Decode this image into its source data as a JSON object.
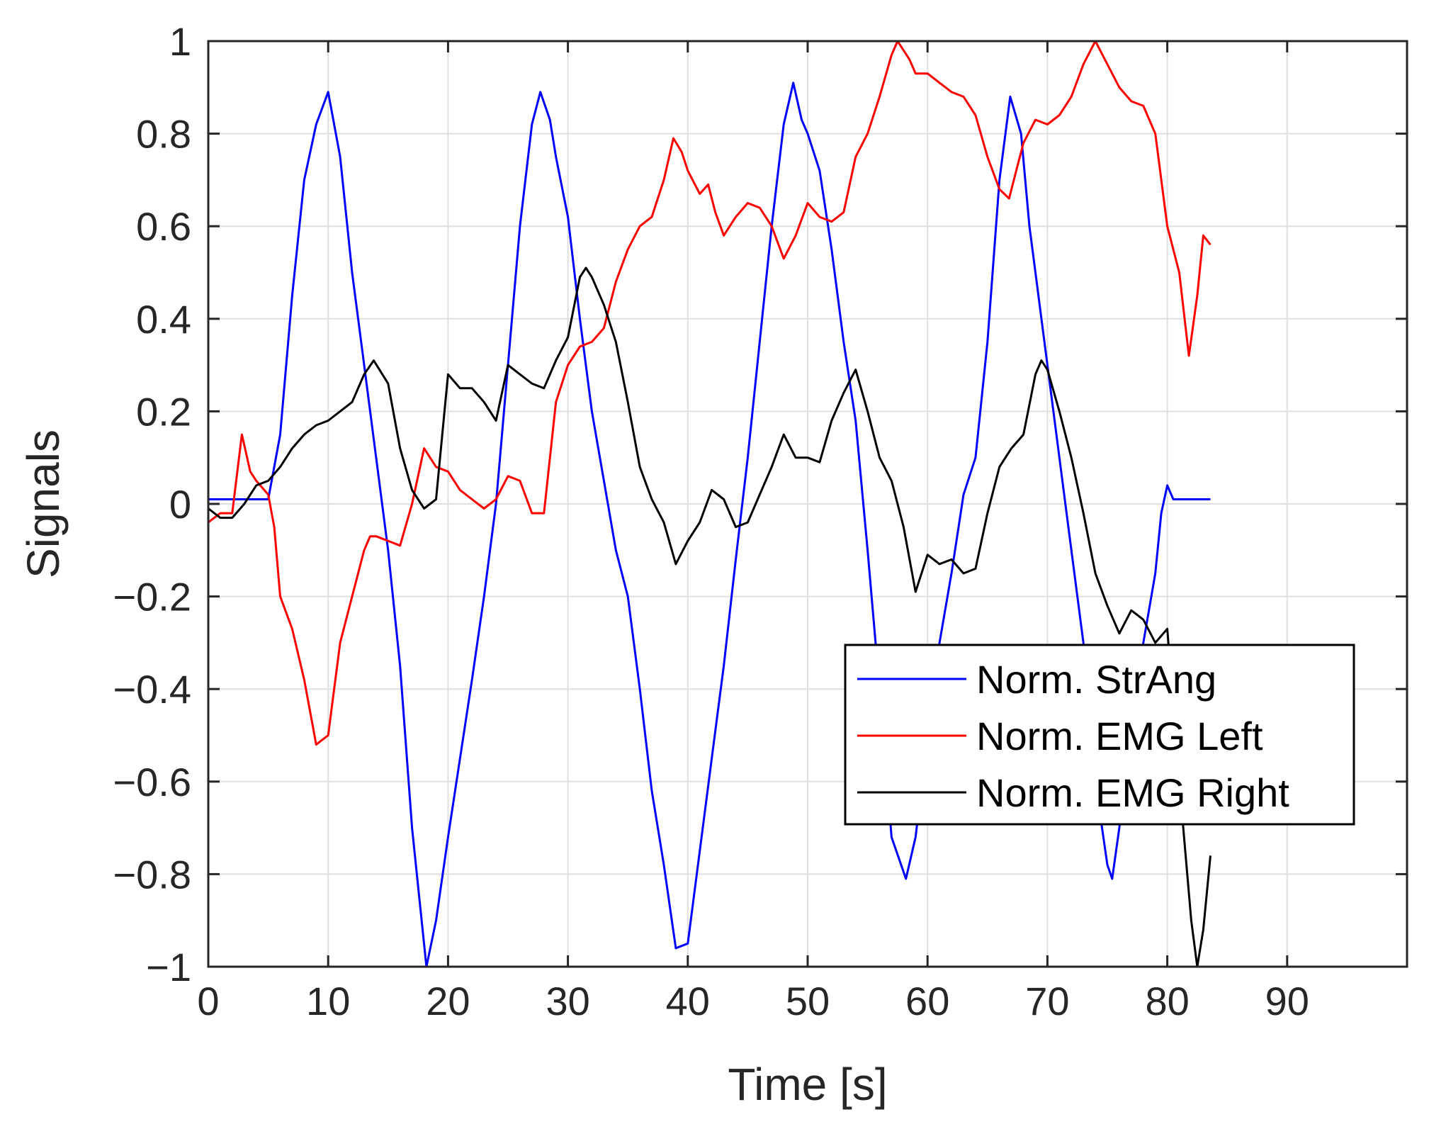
{
  "chart_data": {
    "type": "line",
    "title": "",
    "xlabel": "Time [s]",
    "ylabel": "Signals",
    "xlim": [
      0,
      100
    ],
    "ylim": [
      -1,
      1
    ],
    "xticks": [
      0,
      10,
      20,
      30,
      40,
      50,
      60,
      70,
      80,
      90
    ],
    "yticks": [
      -1,
      -0.8,
      -0.6,
      -0.4,
      -0.2,
      0,
      0.2,
      0.4,
      0.6,
      0.8,
      1
    ],
    "xtick_labels": [
      "0",
      "10",
      "20",
      "30",
      "40",
      "50",
      "60",
      "70",
      "80",
      "90"
    ],
    "ytick_labels": [
      "−1",
      "−0.8",
      "−0.6",
      "−0.4",
      "−0.2",
      "0",
      "0.2",
      "0.4",
      "0.6",
      "0.8",
      "1"
    ],
    "grid": true,
    "legend_position": "lower-right",
    "series": [
      {
        "name": "Norm. StrAng",
        "color": "#0000ff",
        "points": [
          [
            0,
            0.01
          ],
          [
            2,
            0.01
          ],
          [
            5,
            0.01
          ],
          [
            6,
            0.15
          ],
          [
            7,
            0.45
          ],
          [
            8,
            0.7
          ],
          [
            9,
            0.82
          ],
          [
            10,
            0.89
          ],
          [
            11,
            0.75
          ],
          [
            12,
            0.5
          ],
          [
            13,
            0.3
          ],
          [
            14,
            0.1
          ],
          [
            15,
            -0.1
          ],
          [
            16,
            -0.35
          ],
          [
            17,
            -0.7
          ],
          [
            18.2,
            -1.0
          ],
          [
            19,
            -0.9
          ],
          [
            20,
            -0.72
          ],
          [
            21,
            -0.55
          ],
          [
            22,
            -0.38
          ],
          [
            23,
            -0.2
          ],
          [
            24,
            0.0
          ],
          [
            25,
            0.3
          ],
          [
            26,
            0.6
          ],
          [
            27,
            0.82
          ],
          [
            27.7,
            0.89
          ],
          [
            28.5,
            0.83
          ],
          [
            29,
            0.75
          ],
          [
            30,
            0.62
          ],
          [
            31,
            0.4
          ],
          [
            32,
            0.2
          ],
          [
            33,
            0.05
          ],
          [
            34,
            -0.1
          ],
          [
            35,
            -0.2
          ],
          [
            36,
            -0.4
          ],
          [
            37,
            -0.62
          ],
          [
            38,
            -0.78
          ],
          [
            39,
            -0.96
          ],
          [
            40,
            -0.95
          ],
          [
            41,
            -0.75
          ],
          [
            42,
            -0.55
          ],
          [
            43,
            -0.35
          ],
          [
            44,
            -0.12
          ],
          [
            45,
            0.1
          ],
          [
            46,
            0.35
          ],
          [
            47,
            0.6
          ],
          [
            48,
            0.82
          ],
          [
            48.8,
            0.91
          ],
          [
            49.5,
            0.83
          ],
          [
            50,
            0.8
          ],
          [
            51,
            0.72
          ],
          [
            52,
            0.55
          ],
          [
            53,
            0.35
          ],
          [
            54,
            0.18
          ],
          [
            55,
            -0.1
          ],
          [
            56,
            -0.4
          ],
          [
            57,
            -0.72
          ],
          [
            58.2,
            -0.81
          ],
          [
            59,
            -0.72
          ],
          [
            60,
            -0.5
          ],
          [
            61,
            -0.3
          ],
          [
            62,
            -0.15
          ],
          [
            63,
            0.02
          ],
          [
            64,
            0.1
          ],
          [
            65,
            0.35
          ],
          [
            66,
            0.7
          ],
          [
            66.9,
            0.88
          ],
          [
            67.8,
            0.8
          ],
          [
            68.5,
            0.6
          ],
          [
            69,
            0.5
          ],
          [
            70,
            0.3
          ],
          [
            71,
            0.1
          ],
          [
            72,
            -0.1
          ],
          [
            73,
            -0.3
          ],
          [
            74,
            -0.6
          ],
          [
            75,
            -0.78
          ],
          [
            75.4,
            -0.81
          ],
          [
            76,
            -0.7
          ],
          [
            77,
            -0.45
          ],
          [
            78,
            -0.3
          ],
          [
            79,
            -0.15
          ],
          [
            79.5,
            -0.02
          ],
          [
            80,
            0.04
          ],
          [
            80.5,
            0.01
          ],
          [
            82,
            0.01
          ],
          [
            83.6,
            0.01
          ]
        ]
      },
      {
        "name": "Norm. EMG Left",
        "color": "#ff0000",
        "points": [
          [
            0,
            -0.04
          ],
          [
            1,
            -0.02
          ],
          [
            2,
            -0.02
          ],
          [
            2.8,
            0.15
          ],
          [
            3.5,
            0.07
          ],
          [
            4,
            0.05
          ],
          [
            5,
            0.02
          ],
          [
            5.5,
            -0.05
          ],
          [
            6,
            -0.2
          ],
          [
            7,
            -0.27
          ],
          [
            8,
            -0.38
          ],
          [
            9,
            -0.52
          ],
          [
            10,
            -0.5
          ],
          [
            11,
            -0.3
          ],
          [
            12,
            -0.2
          ],
          [
            13,
            -0.1
          ],
          [
            13.5,
            -0.07
          ],
          [
            14,
            -0.07
          ],
          [
            15,
            -0.08
          ],
          [
            16,
            -0.09
          ],
          [
            17,
            0.0
          ],
          [
            18,
            0.12
          ],
          [
            19,
            0.08
          ],
          [
            20,
            0.07
          ],
          [
            21,
            0.03
          ],
          [
            22,
            0.01
          ],
          [
            23,
            -0.01
          ],
          [
            24,
            0.01
          ],
          [
            25,
            0.06
          ],
          [
            26,
            0.05
          ],
          [
            27,
            -0.02
          ],
          [
            28,
            -0.02
          ],
          [
            29,
            0.22
          ],
          [
            30,
            0.3
          ],
          [
            31,
            0.34
          ],
          [
            32,
            0.35
          ],
          [
            33,
            0.38
          ],
          [
            34,
            0.48
          ],
          [
            35,
            0.55
          ],
          [
            36,
            0.6
          ],
          [
            37,
            0.62
          ],
          [
            38,
            0.7
          ],
          [
            38.8,
            0.79
          ],
          [
            39.5,
            0.76
          ],
          [
            40,
            0.72
          ],
          [
            41,
            0.67
          ],
          [
            41.7,
            0.69
          ],
          [
            42.3,
            0.63
          ],
          [
            43,
            0.58
          ],
          [
            44,
            0.62
          ],
          [
            45,
            0.65
          ],
          [
            46,
            0.64
          ],
          [
            47,
            0.6
          ],
          [
            48,
            0.53
          ],
          [
            49,
            0.58
          ],
          [
            50,
            0.65
          ],
          [
            51,
            0.62
          ],
          [
            52,
            0.61
          ],
          [
            53,
            0.63
          ],
          [
            54,
            0.75
          ],
          [
            55,
            0.8
          ],
          [
            56,
            0.88
          ],
          [
            57,
            0.97
          ],
          [
            57.5,
            1.0
          ],
          [
            58.5,
            0.96
          ],
          [
            59,
            0.93
          ],
          [
            60,
            0.93
          ],
          [
            61,
            0.91
          ],
          [
            62,
            0.89
          ],
          [
            63,
            0.88
          ],
          [
            64,
            0.84
          ],
          [
            65,
            0.75
          ],
          [
            66,
            0.68
          ],
          [
            66.8,
            0.66
          ],
          [
            67.5,
            0.73
          ],
          [
            68,
            0.78
          ],
          [
            69,
            0.83
          ],
          [
            70,
            0.82
          ],
          [
            71,
            0.84
          ],
          [
            72,
            0.88
          ],
          [
            73,
            0.95
          ],
          [
            74,
            1.0
          ],
          [
            75,
            0.95
          ],
          [
            76,
            0.9
          ],
          [
            77,
            0.87
          ],
          [
            78,
            0.86
          ],
          [
            79,
            0.8
          ],
          [
            80,
            0.6
          ],
          [
            81,
            0.5
          ],
          [
            81.8,
            0.32
          ],
          [
            82.5,
            0.45
          ],
          [
            83,
            0.58
          ],
          [
            83.6,
            0.56
          ]
        ]
      },
      {
        "name": "Norm. EMG Right",
        "color": "#000000",
        "points": [
          [
            0,
            -0.01
          ],
          [
            1,
            -0.03
          ],
          [
            2,
            -0.03
          ],
          [
            3,
            0.0
          ],
          [
            4,
            0.04
          ],
          [
            5,
            0.05
          ],
          [
            6,
            0.08
          ],
          [
            7,
            0.12
          ],
          [
            8,
            0.15
          ],
          [
            9,
            0.17
          ],
          [
            10,
            0.18
          ],
          [
            11,
            0.2
          ],
          [
            12,
            0.22
          ],
          [
            13,
            0.28
          ],
          [
            13.8,
            0.31
          ],
          [
            15,
            0.26
          ],
          [
            16,
            0.12
          ],
          [
            17,
            0.03
          ],
          [
            18,
            -0.01
          ],
          [
            19,
            0.01
          ],
          [
            20,
            0.28
          ],
          [
            21,
            0.25
          ],
          [
            22,
            0.25
          ],
          [
            23,
            0.22
          ],
          [
            24,
            0.18
          ],
          [
            25,
            0.3
          ],
          [
            26,
            0.28
          ],
          [
            27,
            0.26
          ],
          [
            28,
            0.25
          ],
          [
            29,
            0.31
          ],
          [
            30,
            0.36
          ],
          [
            31,
            0.49
          ],
          [
            31.5,
            0.51
          ],
          [
            32,
            0.49
          ],
          [
            33,
            0.43
          ],
          [
            34,
            0.35
          ],
          [
            35,
            0.22
          ],
          [
            36,
            0.08
          ],
          [
            37,
            0.01
          ],
          [
            38,
            -0.04
          ],
          [
            39,
            -0.13
          ],
          [
            40,
            -0.08
          ],
          [
            41,
            -0.04
          ],
          [
            42,
            0.03
          ],
          [
            43,
            0.01
          ],
          [
            44,
            -0.05
          ],
          [
            45,
            -0.04
          ],
          [
            46,
            0.02
          ],
          [
            47,
            0.08
          ],
          [
            48,
            0.15
          ],
          [
            49,
            0.1
          ],
          [
            50,
            0.1
          ],
          [
            51,
            0.09
          ],
          [
            52,
            0.18
          ],
          [
            53,
            0.24
          ],
          [
            54,
            0.29
          ],
          [
            55,
            0.2
          ],
          [
            56,
            0.1
          ],
          [
            57,
            0.05
          ],
          [
            58,
            -0.05
          ],
          [
            59,
            -0.19
          ],
          [
            60,
            -0.11
          ],
          [
            61,
            -0.13
          ],
          [
            62,
            -0.12
          ],
          [
            63,
            -0.15
          ],
          [
            64,
            -0.14
          ],
          [
            65,
            -0.02
          ],
          [
            66,
            0.08
          ],
          [
            67,
            0.12
          ],
          [
            68,
            0.15
          ],
          [
            69,
            0.28
          ],
          [
            69.5,
            0.31
          ],
          [
            70,
            0.29
          ],
          [
            71,
            0.2
          ],
          [
            72,
            0.1
          ],
          [
            73,
            -0.02
          ],
          [
            74,
            -0.15
          ],
          [
            75,
            -0.22
          ],
          [
            76,
            -0.28
          ],
          [
            77,
            -0.23
          ],
          [
            78,
            -0.25
          ],
          [
            79,
            -0.3
          ],
          [
            80,
            -0.27
          ],
          [
            81,
            -0.6
          ],
          [
            82,
            -0.9
          ],
          [
            82.5,
            -1.0
          ],
          [
            83,
            -0.92
          ],
          [
            83.6,
            -0.76
          ]
        ]
      }
    ]
  }
}
